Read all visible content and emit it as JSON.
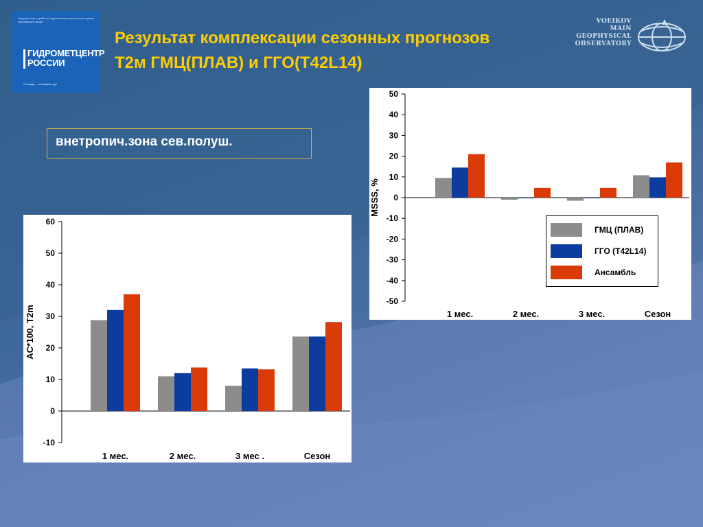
{
  "header": {
    "title_line1": "Результат комплексации  сезонных прогнозов",
    "title_line2": "T2м  ГМЦ(ПЛАВ) и  ГГО(T42L14)"
  },
  "logo_left": {
    "small_text": "Федеральная служба по гидрометеорологии и мониторингу окружающей среды",
    "name_line1": "ГИДРОМЕТЦЕНТР",
    "name_line2": "РОССИИ",
    "motto": "О погоде — из первых рук"
  },
  "logo_right": {
    "lines": [
      "VOEIKOV",
      "MAIN",
      "GEOPHYSICAL",
      "OBSERVATORY"
    ]
  },
  "zone_label": "внетропич.зона сев.полуш.",
  "colors": {
    "gmc": "#8c8c8c",
    "ggo": "#0c3ca0",
    "ensemble": "#d93a08",
    "title": "#ffcc00"
  },
  "chart_data": [
    {
      "type": "bar",
      "categories": [
        "1 мес.",
        "2 мес.",
        "3 мес .",
        "Сезон"
      ],
      "series": [
        {
          "values": [
            28.8,
            11,
            8,
            23.6
          ]
        },
        {
          "values": [
            32,
            12,
            13.5,
            23.6
          ]
        },
        {
          "values": [
            37,
            13.8,
            13.2,
            28.2
          ]
        }
      ],
      "ylabel": "AC*100, T2m",
      "ylim": [
        -10,
        60
      ],
      "yticks": [
        "60",
        "50",
        "40",
        "30",
        "20",
        "10",
        "0",
        "-10"
      ],
      "legend": "none"
    },
    {
      "type": "bar",
      "categories": [
        "1 мес.",
        "2 мес.",
        "3 мес.",
        "Сезон"
      ],
      "series": [
        {
          "name": "ГМЦ (ПЛАВ)",
          "values": [
            9.5,
            -1,
            -1.5,
            10.8
          ]
        },
        {
          "name": "ГГО (T42L14)",
          "values": [
            14.5,
            -0.3,
            -0.3,
            9.8
          ]
        },
        {
          "name": "Ансамбль",
          "values": [
            21,
            4.7,
            4.7,
            17
          ]
        }
      ],
      "ylabel": "MSSS, %",
      "ylim": [
        -50,
        50
      ],
      "yticks": [
        "50",
        "40",
        "30",
        "20",
        "10",
        "0",
        "-10",
        "-20",
        "-30",
        "-40",
        "-50"
      ],
      "legend": "right-middle"
    }
  ]
}
